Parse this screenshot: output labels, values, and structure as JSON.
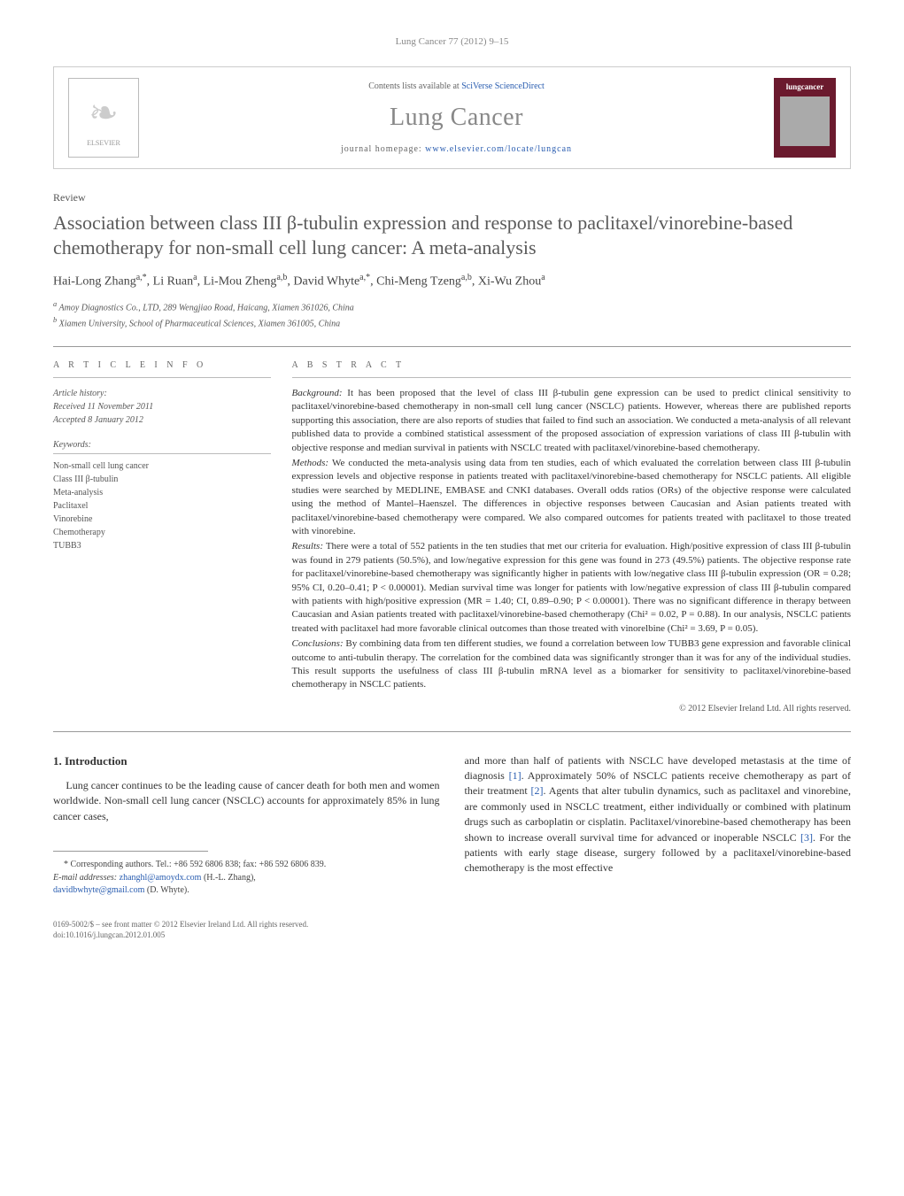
{
  "header": {
    "citation": "Lung Cancer 77 (2012) 9–15",
    "contents_prefix": "Contents lists available at ",
    "contents_link": "SciVerse ScienceDirect",
    "journal_name": "Lung Cancer",
    "homepage_prefix": "journal homepage: ",
    "homepage_link": "www.elsevier.com/locate/lungcan",
    "publisher": "ELSEVIER",
    "cover_label": "lungcancer"
  },
  "article": {
    "type": "Review",
    "title": "Association between class III β-tubulin expression and response to paclitaxel/vinorebine-based chemotherapy for non-small cell lung cancer: A meta-analysis",
    "authors_html": "Hai-Long Zhang<sup>a,*</sup>, Li Ruan<sup>a</sup>, Li-Mou Zheng<sup>a,b</sup>, David Whyte<sup>a,*</sup>, Chi-Meng Tzeng<sup>a,b</sup>, Xi-Wu Zhou<sup>a</sup>",
    "affiliations": [
      "a Amoy Diagnostics Co., LTD, 289 Wengjiao Road, Haicang, Xiamen 361026, China",
      "b Xiamen University, School of Pharmaceutical Sciences, Xiamen 361005, China"
    ]
  },
  "info": {
    "heading": "A R T I C L E   I N F O",
    "history_label": "Article history:",
    "received": "Received 11 November 2011",
    "accepted": "Accepted 8 January 2012",
    "keywords_label": "Keywords:",
    "keywords": [
      "Non-small cell lung cancer",
      "Class III β-tubulin",
      "Meta-analysis",
      "Paclitaxel",
      "Vinorebine",
      "Chemotherapy",
      "TUBB3"
    ]
  },
  "abstract": {
    "heading": "A B S T R A C T",
    "background_label": "Background:",
    "background": " It has been proposed that the level of class III β-tubulin gene expression can be used to predict clinical sensitivity to paclitaxel/vinorebine-based chemotherapy in non-small cell lung cancer (NSCLC) patients. However, whereas there are published reports supporting this association, there are also reports of studies that failed to find such an association. We conducted a meta-analysis of all relevant published data to provide a combined statistical assessment of the proposed association of expression variations of class III β-tubulin with objective response and median survival in patients with NSCLC treated with paclitaxel/vinorebine-based chemotherapy.",
    "methods_label": "Methods:",
    "methods": " We conducted the meta-analysis using data from ten studies, each of which evaluated the correlation between class III β-tubulin expression levels and objective response in patients treated with paclitaxel/vinorebine-based chemotherapy for NSCLC patients. All eligible studies were searched by MEDLINE, EMBASE and CNKI databases. Overall odds ratios (ORs) of the objective response were calculated using the method of Mantel–Haenszel. The differences in objective responses between Caucasian and Asian patients treated with paclitaxel/vinorebine-based chemotherapy were compared. We also compared outcomes for patients treated with paclitaxel to those treated with vinorebine.",
    "results_label": "Results:",
    "results": " There were a total of 552 patients in the ten studies that met our criteria for evaluation. High/positive expression of class III β-tubulin was found in 279 patients (50.5%), and low/negative expression for this gene was found in 273 (49.5%) patients. The objective response rate for paclitaxel/vinorebine-based chemotherapy was significantly higher in patients with low/negative class III β-tubulin expression (OR = 0.28; 95% CI, 0.20–0.41; P < 0.00001). Median survival time was longer for patients with low/negative expression of class III β-tubulin compared with patients with high/positive expression (MR = 1.40; CI, 0.89–0.90; P < 0.00001). There was no significant difference in therapy between Caucasian and Asian patients treated with paclitaxel/vinorebine-based chemotherapy (Chi² = 0.02, P = 0.88). In our analysis, NSCLC patients treated with paclitaxel had more favorable clinical outcomes than those treated with vinorelbine (Chi² = 3.69, P = 0.05).",
    "conclusions_label": "Conclusions:",
    "conclusions": " By combining data from ten different studies, we found a correlation between low TUBB3 gene expression and favorable clinical outcome to anti-tubulin therapy. The correlation for the combined data was significantly stronger than it was for any of the individual studies. This result supports the usefulness of class III β-tubulin mRNA level as a biomarker for sensitivity to paclitaxel/vinorebine-based chemotherapy in NSCLC patients.",
    "copyright": "© 2012 Elsevier Ireland Ltd. All rights reserved."
  },
  "body": {
    "section_heading": "1. Introduction",
    "col1_p1": "Lung cancer continues to be the leading cause of cancer death for both men and women worldwide. Non-small cell lung cancer (NSCLC) accounts for approximately 85% in lung cancer cases,",
    "col2_p1_a": "and more than half of patients with NSCLC have developed metastasis at the time of diagnosis ",
    "ref1": "[1]",
    "col2_p1_b": ". Approximately 50% of NSCLC patients receive chemotherapy as part of their treatment ",
    "ref2": "[2]",
    "col2_p1_c": ". Agents that alter tubulin dynamics, such as paclitaxel and vinorebine, are commonly used in NSCLC treatment, either individually or combined with platinum drugs such as carboplatin or cisplatin. Paclitaxel/vinorebine-based chemotherapy has been shown to increase overall survival time for advanced or inoperable NSCLC ",
    "ref3": "[3]",
    "col2_p1_d": ". For the patients with early stage disease, surgery followed by a paclitaxel/vinorebine-based chemotherapy is the most effective"
  },
  "footnote": {
    "corr": "* Corresponding authors. Tel.: +86 592 6806 838; fax: +86 592 6806 839.",
    "email_label": "E-mail addresses: ",
    "email1": "zhanghl@amoydx.com",
    "email1_who": " (H.-L. Zhang), ",
    "email2": "davidbwhyte@gmail.com",
    "email2_who": " (D. Whyte)."
  },
  "bottom": {
    "line1": "0169-5002/$ – see front matter © 2012 Elsevier Ireland Ltd. All rights reserved.",
    "line2": "doi:10.1016/j.lungcan.2012.01.005"
  },
  "colors": {
    "link": "#2a5db0",
    "cover_bg": "#6b1a2e",
    "text_gray": "#5a5a5a"
  }
}
